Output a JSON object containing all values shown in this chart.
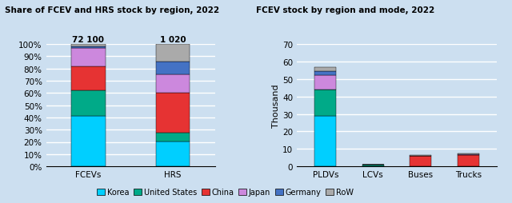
{
  "left_title": "Share of FCEV and HRS stock by region, 2022",
  "right_title": "FCEV stock by region and mode, 2022",
  "legend_labels": [
    "Korea",
    "United States",
    "China",
    "Japan",
    "Germany",
    "RoW"
  ],
  "colors": [
    "#00CFFF",
    "#00AA88",
    "#E63333",
    "#CC88DD",
    "#4472C4",
    "#AAAAAA"
  ],
  "bar_labels": [
    "FCEVs",
    "HRS"
  ],
  "bar_totals": [
    "72 100",
    "1 020"
  ],
  "fcev_shares": [
    0.41,
    0.21,
    0.195,
    0.155,
    0.01,
    0.02
  ],
  "hrs_shares": [
    0.205,
    0.07,
    0.325,
    0.155,
    0.1,
    0.145
  ],
  "mode_labels": [
    "PLDVs",
    "LCVs",
    "Buses",
    "Trucks"
  ],
  "mode_data": {
    "Korea": [
      29.0,
      0.0,
      0.0,
      0.0
    ],
    "United States": [
      15.0,
      0.8,
      0.0,
      0.0
    ],
    "China": [
      0.0,
      0.0,
      6.0,
      6.5
    ],
    "Japan": [
      8.0,
      0.0,
      0.0,
      0.5
    ],
    "Germany": [
      2.5,
      0.0,
      0.0,
      0.0
    ],
    "RoW": [
      2.5,
      0.2,
      0.3,
      0.2
    ]
  },
  "right_ylim": 70,
  "right_yticks": [
    0,
    10,
    20,
    30,
    40,
    50,
    60,
    70
  ],
  "ylabel_right": "Thousand",
  "background_color": "#CCDFF0",
  "grid_color": "#FFFFFF"
}
